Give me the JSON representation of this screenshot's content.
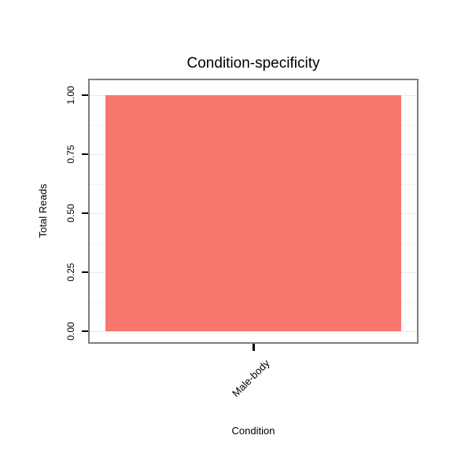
{
  "chart": {
    "title": "Condition-specificity",
    "x_axis_title": "Condition",
    "y_axis_title": "Total Reads"
  },
  "chart_data": {
    "type": "bar",
    "title": "Condition-specificity",
    "xlabel": "Condition",
    "ylabel": "Total Reads",
    "categories": [
      "Male-body"
    ],
    "values": [
      1.0
    ],
    "ylim": [
      0,
      1.0
    ],
    "yticks": [
      0.0,
      0.25,
      0.5,
      0.75,
      1.0
    ],
    "ytick_labels": [
      "0.00",
      "0.25",
      "0.50",
      "0.75",
      "1.00"
    ],
    "bar_color": "#F8766D",
    "grid": true,
    "legend": false
  },
  "colors": {
    "bar": "#F8766D",
    "panel_border": "#7f7f7f",
    "grid_major": "#e8e8e8",
    "grid_minor": "#f4f4f4",
    "tick": "#000000"
  }
}
